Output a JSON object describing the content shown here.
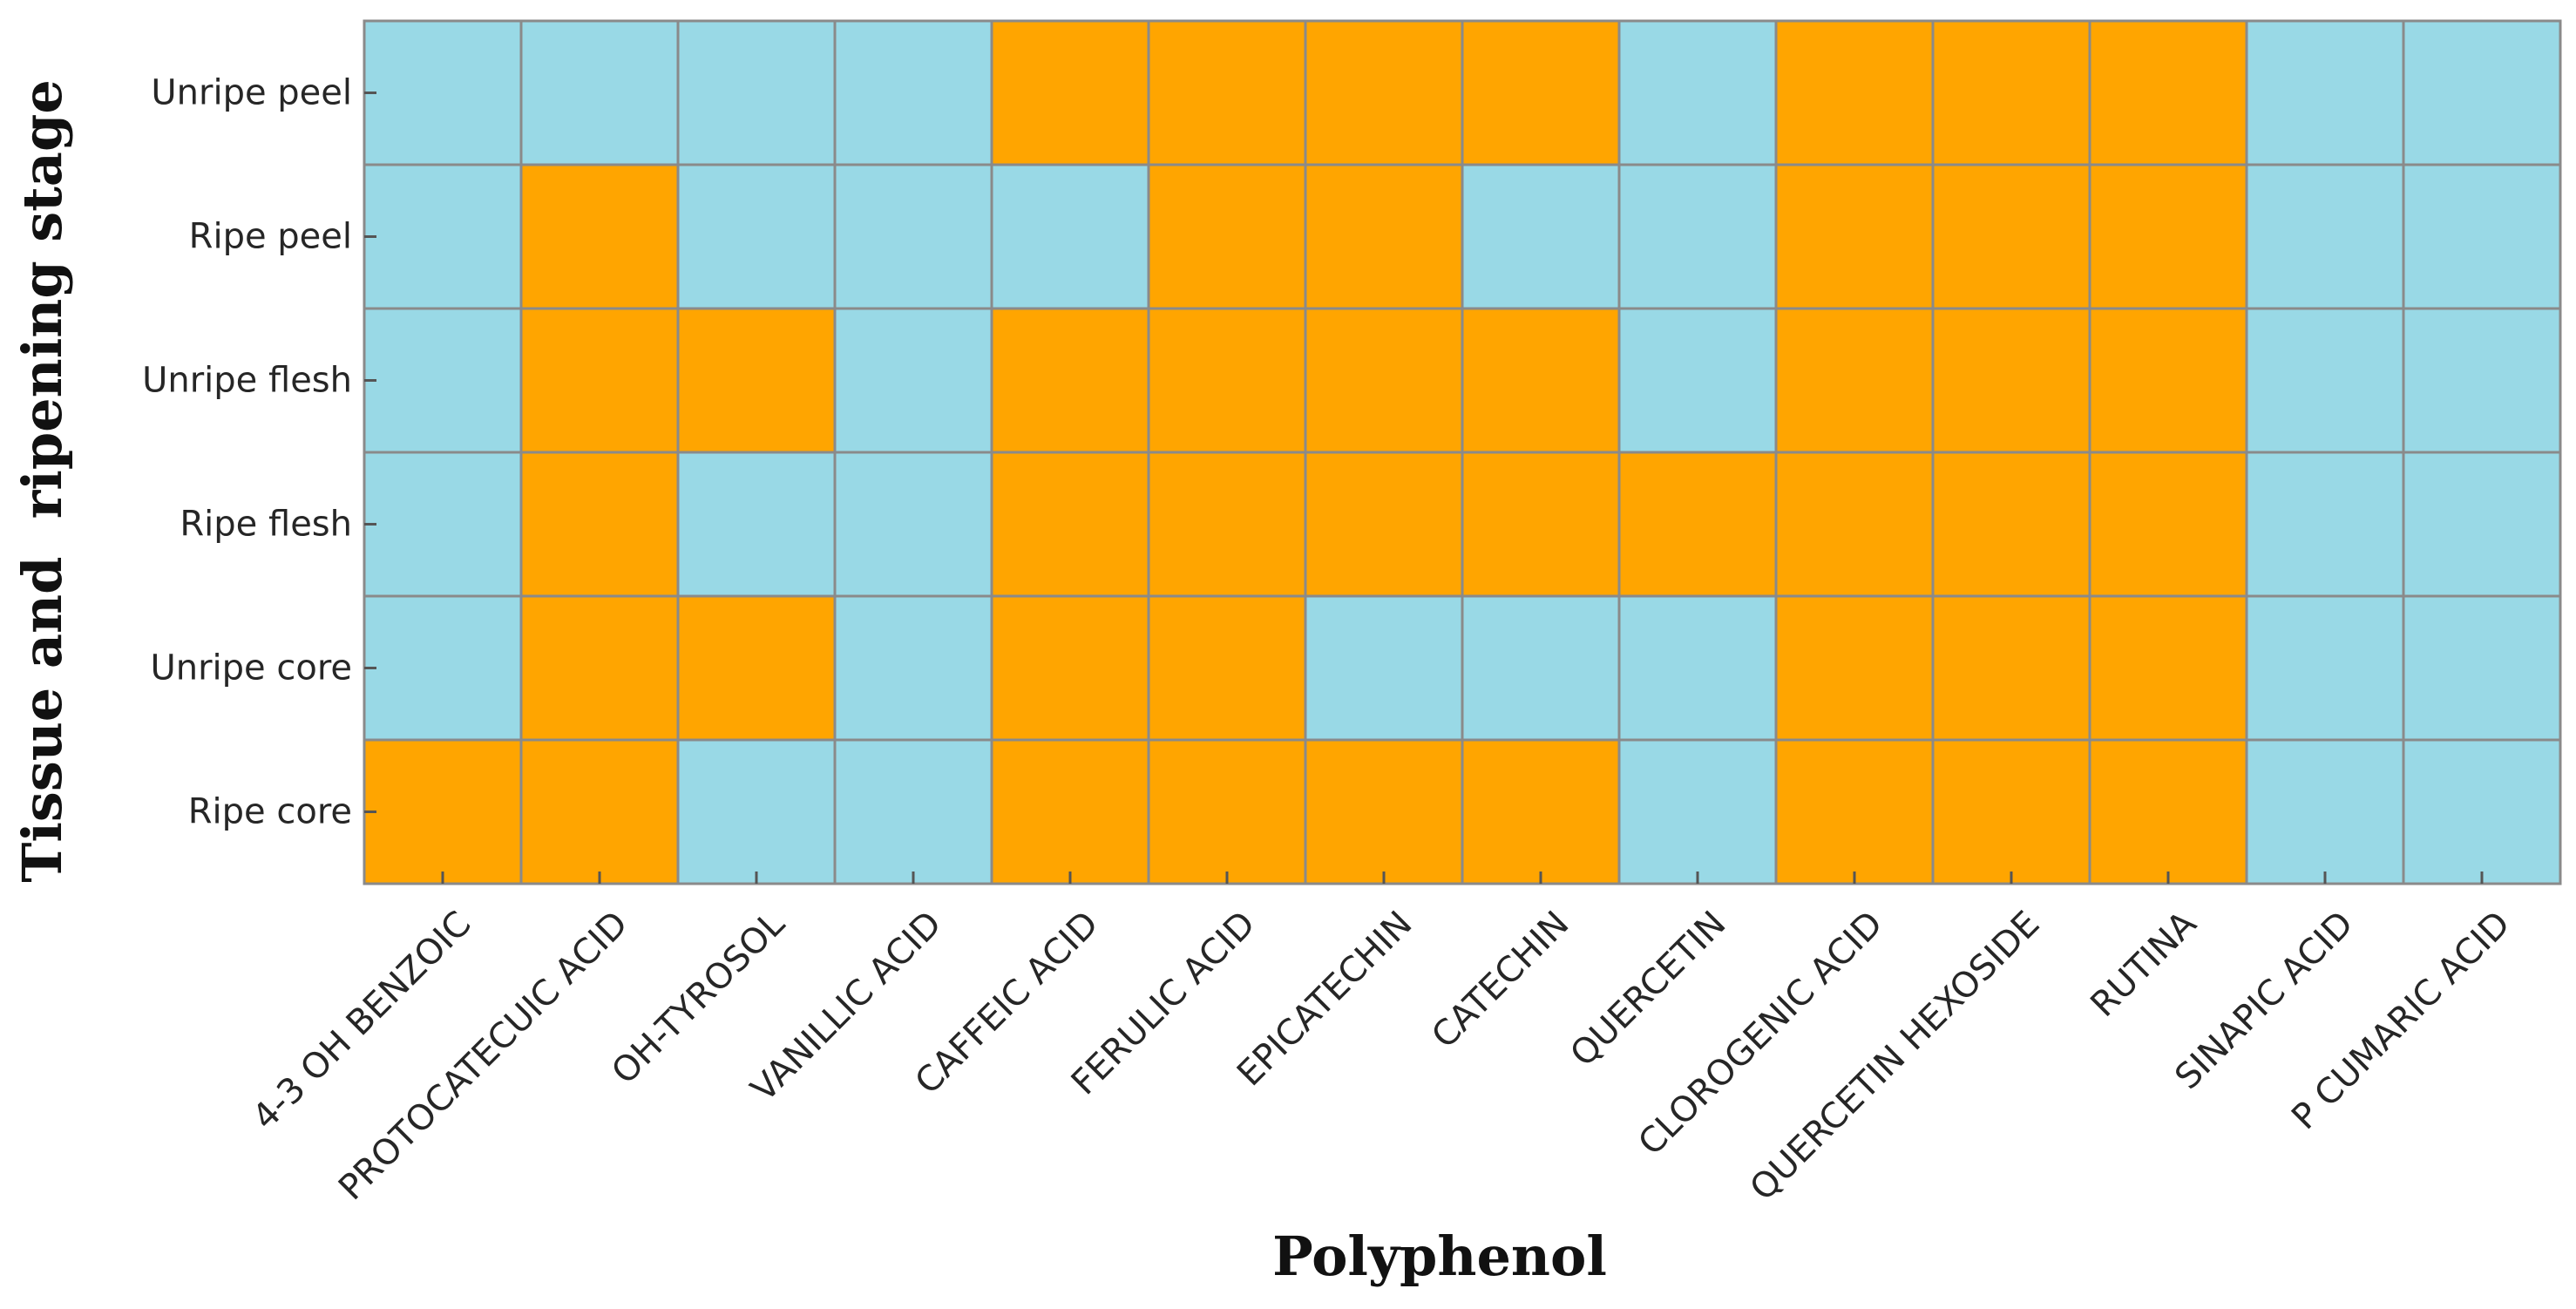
{
  "chart_data": {
    "type": "heatmap",
    "title": "",
    "xlabel": "Polyphenol",
    "ylabel": "Tissue and  ripening stage",
    "rows": [
      "Unripe peel",
      "Ripe peel",
      "Unripe flesh",
      "Ripe flesh",
      "Unripe core",
      "Ripe core"
    ],
    "columns": [
      "4-3 OH BENZOIC",
      "PROTOCATECUIC ACID",
      "OH-TYROSOL",
      "VANILLIC ACID",
      "CAFFEIC ACID",
      "FERULIC ACID",
      "EPICATECHIN",
      "CATECHIN",
      "QUERCETIN",
      "CLOROGENIC ACID",
      "QUERCETIN HEXOSIDE",
      "RUTINA",
      "SINAPIC ACID",
      "P CUMARIC ACID"
    ],
    "values": [
      [
        0,
        0,
        0,
        0,
        1,
        1,
        1,
        1,
        0,
        1,
        1,
        1,
        0,
        0
      ],
      [
        0,
        1,
        0,
        0,
        0,
        1,
        1,
        0,
        0,
        1,
        1,
        1,
        0,
        0
      ],
      [
        0,
        1,
        1,
        0,
        1,
        1,
        1,
        1,
        0,
        1,
        1,
        1,
        0,
        0
      ],
      [
        0,
        1,
        0,
        0,
        1,
        1,
        1,
        1,
        1,
        1,
        1,
        1,
        0,
        0
      ],
      [
        0,
        1,
        1,
        0,
        1,
        1,
        0,
        0,
        0,
        1,
        1,
        1,
        0,
        0
      ],
      [
        1,
        1,
        0,
        0,
        1,
        1,
        1,
        1,
        0,
        1,
        1,
        1,
        0,
        0
      ]
    ],
    "colors": {
      "0": "#99d9e6",
      "1": "#ffa500",
      "grid": "#8a8a8a"
    },
    "grid": true,
    "legend": "none"
  }
}
